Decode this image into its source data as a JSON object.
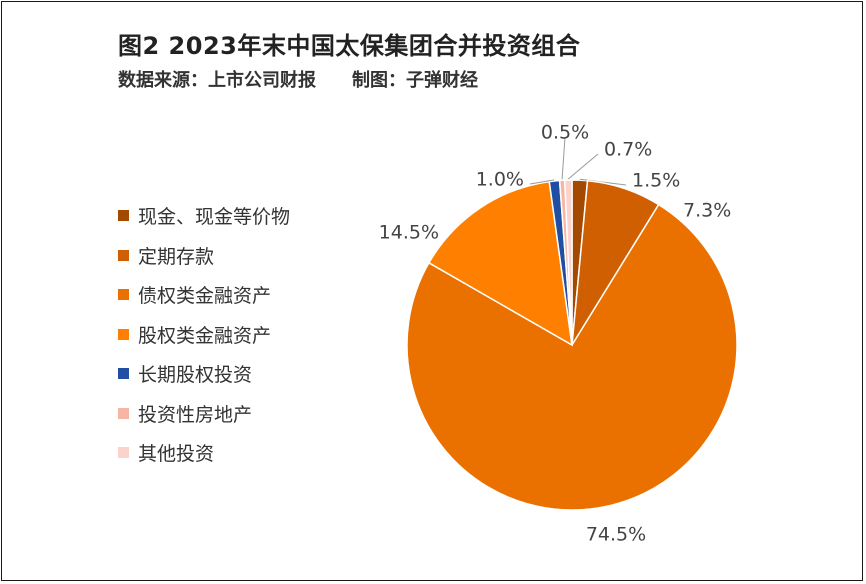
{
  "chart_data": {
    "type": "pie",
    "title": "图2 2023年末中国太保集团合并投资组合",
    "subtitle_source": "数据来源：上市公司财报",
    "subtitle_maker": "制图：子弹财经",
    "categories": [
      "现金、现金等价物",
      "定期存款",
      "债权类金融资产",
      "股权类金融资产",
      "长期股权投资",
      "投资性房地产",
      "其他投资"
    ],
    "values": [
      1.5,
      7.3,
      74.5,
      14.5,
      1.0,
      0.5,
      0.7
    ],
    "data_labels": [
      "1.5%",
      "7.3%",
      "74.5%",
      "14.5%",
      "1.0%",
      "0.5%",
      "0.7%"
    ],
    "colors": [
      "#a34a00",
      "#cf5f00",
      "#ea7000",
      "#ff8000",
      "#1f4ea3",
      "#f7b5a3",
      "#fbd3cc"
    ],
    "legend_position": "left"
  }
}
